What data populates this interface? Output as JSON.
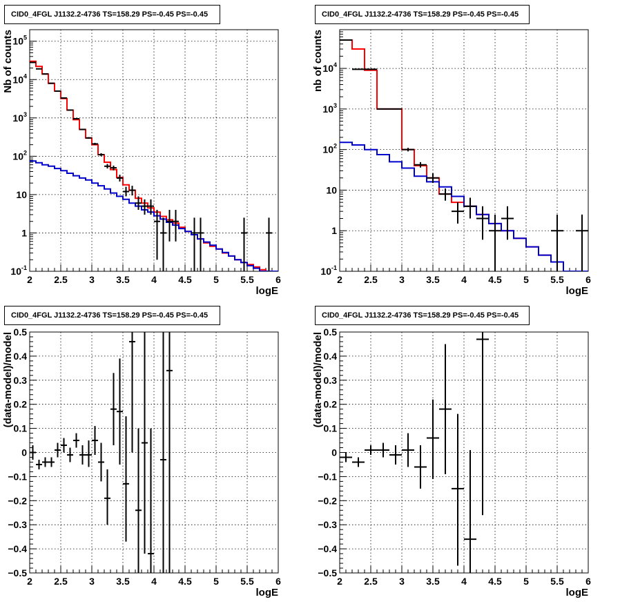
{
  "chart_data": [
    {
      "type": "line",
      "panel": "top-left",
      "title": "CID0_4FGL J1132.2-4736 TS=158.29 PS=-0.45 PS=-0.45",
      "xlabel": "logE",
      "ylabel": "Nb of counts",
      "xlim": [
        2,
        6
      ],
      "ylim": [
        0.1,
        200000
      ],
      "yscale": "log",
      "grid": true,
      "xticks": [
        "2",
        "2.5",
        "3",
        "3.5",
        "4",
        "4.5",
        "5",
        "5.5",
        "6"
      ],
      "yticks": [
        {
          "value": 0.1,
          "base": "10",
          "exp": "-1"
        },
        {
          "value": 1,
          "text": "1"
        },
        {
          "value": 10,
          "text": "10"
        },
        {
          "value": 100,
          "base": "10",
          "exp": "2"
        },
        {
          "value": 1000,
          "base": "10",
          "exp": "3"
        },
        {
          "value": 10000,
          "base": "10",
          "exp": "4"
        },
        {
          "value": 100000,
          "base": "10",
          "exp": "5"
        }
      ],
      "bin_edges": [
        2.0,
        2.1,
        2.2,
        2.3,
        2.4,
        2.5,
        2.6,
        2.7,
        2.8,
        2.9,
        3.0,
        3.1,
        3.2,
        3.3,
        3.4,
        3.5,
        3.6,
        3.7,
        3.8,
        3.9,
        4.0,
        4.1,
        4.2,
        4.3,
        4.4,
        4.5,
        4.6,
        4.7,
        4.8,
        4.9,
        5.0,
        5.1,
        5.2,
        5.3,
        5.4,
        5.5,
        5.6,
        5.7,
        5.8,
        5.9,
        6.0
      ],
      "series": [
        {
          "color": "#ff0000",
          "style": "step",
          "values": [
            30000,
            22000,
            14000,
            8000,
            5000,
            3200,
            1600,
            900,
            500,
            300,
            200,
            110,
            70,
            45,
            28,
            18,
            13,
            8,
            6,
            4.5,
            3.5,
            2.7,
            2.2,
            1.8,
            1.4,
            1.1,
            0.9,
            0.7,
            0.55,
            0.45,
            0.38,
            0.3,
            0.25,
            0.2,
            0.17,
            0.15,
            0.13,
            0.11,
            0.1,
            0.09
          ]
        },
        {
          "color": "#0000cc",
          "style": "step",
          "values": [
            75,
            68,
            60,
            55,
            48,
            42,
            36,
            31,
            27,
            24,
            20,
            17,
            14,
            11,
            9,
            7.5,
            6,
            5,
            4,
            3.5,
            2.8,
            2.3,
            1.9,
            1.6,
            1.3,
            1.1,
            0.9,
            0.7,
            0.58,
            0.48,
            0.38,
            0.31,
            0.25,
            0.2,
            0.17,
            0.14,
            0.12,
            0.1,
            0.09,
            0.08
          ]
        }
      ],
      "points": [
        {
          "x": 2.05,
          "y": 28000,
          "lo": 27000,
          "hi": 29000
        },
        {
          "x": 2.15,
          "y": 19000,
          "lo": 18500,
          "hi": 19600
        },
        {
          "x": 2.25,
          "y": 14000,
          "lo": 13600,
          "hi": 14400
        },
        {
          "x": 2.35,
          "y": 8000,
          "lo": 7800,
          "hi": 8200
        },
        {
          "x": 2.45,
          "y": 5000,
          "lo": 4850,
          "hi": 5150
        },
        {
          "x": 2.55,
          "y": 3300,
          "lo": 3200,
          "hi": 3400
        },
        {
          "x": 2.65,
          "y": 1600,
          "lo": 1560,
          "hi": 1640
        },
        {
          "x": 2.75,
          "y": 950,
          "lo": 920,
          "hi": 980
        },
        {
          "x": 2.85,
          "y": 500,
          "lo": 480,
          "hi": 520
        },
        {
          "x": 2.95,
          "y": 300,
          "lo": 285,
          "hi": 315
        },
        {
          "x": 3.05,
          "y": 210,
          "lo": 196,
          "hi": 224
        },
        {
          "x": 3.15,
          "y": 110,
          "lo": 100,
          "hi": 120
        },
        {
          "x": 3.25,
          "y": 55,
          "lo": 48,
          "hi": 63
        },
        {
          "x": 3.35,
          "y": 50,
          "lo": 43,
          "hi": 57
        },
        {
          "x": 3.45,
          "y": 27,
          "lo": 22,
          "hi": 33
        },
        {
          "x": 3.55,
          "y": 12,
          "lo": 9,
          "hi": 16
        },
        {
          "x": 3.65,
          "y": 13,
          "lo": 9.5,
          "hi": 17
        },
        {
          "x": 3.75,
          "y": 6,
          "lo": 4,
          "hi": 9
        },
        {
          "x": 3.85,
          "y": 5,
          "lo": 3,
          "hi": 7.5
        },
        {
          "x": 3.95,
          "y": 5,
          "lo": 3,
          "hi": 7.5
        },
        {
          "x": 4.05,
          "y": 2,
          "lo": 0.2,
          "hi": 4
        },
        {
          "x": 4.15,
          "y": 1,
          "lo": 0.1,
          "hi": 2.5
        },
        {
          "x": 4.25,
          "y": 2,
          "lo": 0.6,
          "hi": 4
        },
        {
          "x": 4.35,
          "y": 2,
          "lo": 0.6,
          "hi": 4
        },
        {
          "x": 4.65,
          "y": 1,
          "lo": 0.1,
          "hi": 2.5
        },
        {
          "x": 4.75,
          "y": 1,
          "lo": 0.1,
          "hi": 2.5
        },
        {
          "x": 5.45,
          "y": 1,
          "lo": 0.1,
          "hi": 2.5
        },
        {
          "x": 5.85,
          "y": 1,
          "lo": 0.1,
          "hi": 2.5
        }
      ],
      "point_halfwidth": 0.05
    },
    {
      "type": "line",
      "panel": "top-right",
      "title": "CID0_4FGL J1132.2-4736 TS=158.29 PS=-0.45 PS=-0.45",
      "xlabel": "logE",
      "ylabel": "nb of counts",
      "xlim": [
        2,
        6
      ],
      "ylim": [
        0.1,
        90000
      ],
      "yscale": "log",
      "grid": true,
      "xticks": [
        "2",
        "2.5",
        "3",
        "3.5",
        "4",
        "4.5",
        "5",
        "5.5",
        "6"
      ],
      "yticks": [
        {
          "value": 0.1,
          "base": "10",
          "exp": "-1"
        },
        {
          "value": 1,
          "text": "1"
        },
        {
          "value": 10,
          "text": "10"
        },
        {
          "value": 100,
          "base": "10",
          "exp": "2"
        },
        {
          "value": 1000,
          "base": "10",
          "exp": "3"
        },
        {
          "value": 10000,
          "base": "10",
          "exp": "4"
        }
      ],
      "bin_edges": [
        2.0,
        2.2,
        2.4,
        2.6,
        2.8,
        3.0,
        3.2,
        3.4,
        3.6,
        3.8,
        4.0,
        4.2,
        4.4,
        4.6,
        4.8,
        5.0,
        5.2,
        5.4,
        5.6,
        5.8,
        6.0
      ],
      "series": [
        {
          "color": "#ff0000",
          "style": "step",
          "values": [
            50000,
            30000,
            9000,
            1000,
            1000,
            100,
            40,
            20,
            8,
            5,
            4,
            2.5,
            1.5,
            1.0,
            0.65,
            0.4,
            0.25,
            0.17,
            0.1,
            0.085
          ]
        },
        {
          "color": "#0000cc",
          "style": "step",
          "values": [
            150,
            130,
            100,
            75,
            50,
            35,
            22,
            16,
            12,
            7,
            4,
            2.5,
            1.5,
            1.0,
            0.65,
            0.4,
            0.25,
            0.17,
            0.1,
            0.085
          ]
        }
      ],
      "points": [
        {
          "x": 2.1,
          "y": 50000,
          "lo": 49500,
          "hi": 50500
        },
        {
          "x": 2.3,
          "y": 9500,
          "lo": 9300,
          "hi": 9700
        },
        {
          "x": 2.5,
          "y": 9500,
          "lo": 9300,
          "hi": 9700
        },
        {
          "x": 2.7,
          "y": 1000,
          "lo": 970,
          "hi": 1030
        },
        {
          "x": 2.9,
          "y": 1000,
          "lo": 970,
          "hi": 1030
        },
        {
          "x": 3.1,
          "y": 100,
          "lo": 90,
          "hi": 110
        },
        {
          "x": 3.3,
          "y": 42,
          "lo": 36,
          "hi": 49
        },
        {
          "x": 3.5,
          "y": 20,
          "lo": 15,
          "hi": 26
        },
        {
          "x": 3.7,
          "y": 8,
          "lo": 5.5,
          "hi": 11
        },
        {
          "x": 3.9,
          "y": 3,
          "lo": 1.5,
          "hi": 5
        },
        {
          "x": 4.1,
          "y": 4,
          "lo": 2,
          "hi": 6.5
        },
        {
          "x": 4.3,
          "y": 2,
          "lo": 0.6,
          "hi": 4
        },
        {
          "x": 4.5,
          "y": 1,
          "lo": 0.1,
          "hi": 2.5
        },
        {
          "x": 4.7,
          "y": 2,
          "lo": 0.6,
          "hi": 4
        },
        {
          "x": 5.5,
          "y": 1,
          "lo": 0.1,
          "hi": 2.5
        },
        {
          "x": 5.9,
          "y": 1,
          "lo": 0.1,
          "hi": 2.5
        }
      ],
      "point_halfwidth": 0.1
    },
    {
      "type": "scatter",
      "panel": "bottom-left",
      "title": "CID0_4FGL J1132.2-4736 TS=158.29 PS=-0.45 PS=-0.45",
      "xlabel": "logE",
      "ylabel": "(data-model)/model",
      "xlim": [
        2,
        6
      ],
      "ylim": [
        -0.5,
        0.5
      ],
      "yscale": "linear",
      "grid": true,
      "xticks": [
        "2",
        "2.5",
        "3",
        "3.5",
        "4",
        "4.5",
        "5",
        "5.5",
        "6"
      ],
      "yticks": [
        {
          "value": -0.5,
          "text": "−0.5"
        },
        {
          "value": -0.4,
          "text": "−0.4"
        },
        {
          "value": -0.3,
          "text": "−0.3"
        },
        {
          "value": -0.2,
          "text": "−0.2"
        },
        {
          "value": -0.1,
          "text": "−0.1"
        },
        {
          "value": 0,
          "text": "0"
        },
        {
          "value": 0.1,
          "text": "0.1"
        },
        {
          "value": 0.2,
          "text": "0.2"
        },
        {
          "value": 0.3,
          "text": "0.3"
        },
        {
          "value": 0.4,
          "text": "0.4"
        },
        {
          "value": 0.5,
          "text": "0.5"
        }
      ],
      "points": [
        {
          "x": 2.05,
          "y": 0.0,
          "lo": -0.03,
          "hi": 0.03
        },
        {
          "x": 2.15,
          "y": -0.05,
          "lo": -0.07,
          "hi": -0.03
        },
        {
          "x": 2.25,
          "y": -0.04,
          "lo": -0.06,
          "hi": -0.02
        },
        {
          "x": 2.35,
          "y": -0.04,
          "lo": -0.06,
          "hi": -0.02
        },
        {
          "x": 2.45,
          "y": 0.01,
          "lo": -0.02,
          "hi": 0.04
        },
        {
          "x": 2.55,
          "y": 0.03,
          "lo": 0.0,
          "hi": 0.06
        },
        {
          "x": 2.65,
          "y": -0.01,
          "lo": -0.04,
          "hi": 0.02
        },
        {
          "x": 2.75,
          "y": 0.05,
          "lo": 0.02,
          "hi": 0.08
        },
        {
          "x": 2.85,
          "y": -0.01,
          "lo": -0.05,
          "hi": 0.03
        },
        {
          "x": 2.95,
          "y": -0.01,
          "lo": -0.06,
          "hi": 0.05
        },
        {
          "x": 3.05,
          "y": 0.05,
          "lo": -0.01,
          "hi": 0.11
        },
        {
          "x": 3.15,
          "y": -0.04,
          "lo": -0.12,
          "hi": 0.04
        },
        {
          "x": 3.25,
          "y": -0.19,
          "lo": -0.3,
          "hi": -0.07
        },
        {
          "x": 3.35,
          "y": 0.18,
          "lo": 0.03,
          "hi": 0.33
        },
        {
          "x": 3.45,
          "y": 0.17,
          "lo": -0.05,
          "hi": 0.39
        },
        {
          "x": 3.55,
          "y": -0.13,
          "lo": -0.37,
          "hi": 0.15
        },
        {
          "x": 3.65,
          "y": 0.46,
          "lo": 0.0,
          "hi": 0.5
        },
        {
          "x": 3.75,
          "y": -0.24,
          "lo": -0.5,
          "hi": 0.1
        },
        {
          "x": 3.85,
          "y": 0.04,
          "lo": -0.42,
          "hi": 0.5
        },
        {
          "x": 3.95,
          "y": -0.42,
          "lo": -0.5,
          "hi": 0.1
        },
        {
          "x": 4.15,
          "y": -0.03,
          "lo": -0.5,
          "hi": 0.5
        },
        {
          "x": 4.25,
          "y": 0.34,
          "lo": -0.5,
          "hi": 0.5
        }
      ],
      "point_halfwidth": 0.05
    },
    {
      "type": "scatter",
      "panel": "bottom-right",
      "title": "CID0_4FGL J1132.2-4736 TS=158.29 PS=-0.45 PS=-0.45",
      "xlabel": "logE",
      "ylabel": "(data-model)/model",
      "xlim": [
        2,
        6
      ],
      "ylim": [
        -0.5,
        0.5
      ],
      "yscale": "linear",
      "grid": true,
      "xticks": [
        "2",
        "2.5",
        "3",
        "3.5",
        "4",
        "4.5",
        "5",
        "5.5",
        "6"
      ],
      "yticks": [
        {
          "value": -0.5,
          "text": "−0.5"
        },
        {
          "value": -0.4,
          "text": "−0.4"
        },
        {
          "value": -0.3,
          "text": "−0.3"
        },
        {
          "value": -0.2,
          "text": "−0.2"
        },
        {
          "value": -0.1,
          "text": "−0.1"
        },
        {
          "value": 0,
          "text": "0"
        },
        {
          "value": 0.1,
          "text": "0.1"
        },
        {
          "value": 0.2,
          "text": "0.2"
        },
        {
          "value": 0.3,
          "text": "0.3"
        },
        {
          "value": 0.4,
          "text": "0.4"
        },
        {
          "value": 0.5,
          "text": "0.5"
        }
      ],
      "points": [
        {
          "x": 2.1,
          "y": -0.02,
          "lo": -0.04,
          "hi": 0.0
        },
        {
          "x": 2.3,
          "y": -0.04,
          "lo": -0.06,
          "hi": -0.02
        },
        {
          "x": 2.5,
          "y": 0.01,
          "lo": -0.01,
          "hi": 0.03
        },
        {
          "x": 2.7,
          "y": 0.01,
          "lo": -0.02,
          "hi": 0.04
        },
        {
          "x": 2.9,
          "y": -0.01,
          "lo": -0.05,
          "hi": 0.03
        },
        {
          "x": 3.1,
          "y": 0.01,
          "lo": -0.06,
          "hi": 0.08
        },
        {
          "x": 3.3,
          "y": -0.06,
          "lo": -0.15,
          "hi": 0.03
        },
        {
          "x": 3.5,
          "y": 0.06,
          "lo": -0.11,
          "hi": 0.22
        },
        {
          "x": 3.7,
          "y": 0.18,
          "lo": -0.09,
          "hi": 0.45
        },
        {
          "x": 3.9,
          "y": -0.15,
          "lo": -0.47,
          "hi": 0.16
        },
        {
          "x": 4.1,
          "y": -0.36,
          "lo": -0.5,
          "hi": 0.01
        },
        {
          "x": 4.3,
          "y": 0.47,
          "lo": -0.26,
          "hi": 0.5
        }
      ],
      "point_halfwidth": 0.1
    }
  ]
}
